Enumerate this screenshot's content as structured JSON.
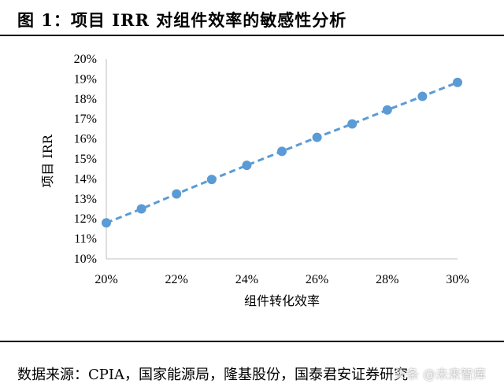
{
  "figure": {
    "title": "图 1：项目 IRR 对组件效率的敏感性分析",
    "source": "数据来源：CPIA，国家能源局，隆基股份，国泰君安证券研究",
    "watermark": "头条 @未来智库"
  },
  "chart_data": {
    "type": "line",
    "title": "",
    "xlabel": "组件转化效率",
    "ylabel": "项目 IRR",
    "xlim": [
      0.2,
      0.3
    ],
    "ylim": [
      0.1,
      0.2
    ],
    "x_ticks": [
      "20%",
      "22%",
      "24%",
      "26%",
      "28%",
      "30%"
    ],
    "y_ticks": [
      "10%",
      "11%",
      "12%",
      "13%",
      "14%",
      "15%",
      "16%",
      "17%",
      "18%",
      "19%",
      "20%"
    ],
    "grid": false,
    "line_style": "dashed",
    "marker": "circle",
    "color": "#5b9bd5",
    "series": [
      {
        "x": [
          0.2,
          0.21,
          0.22,
          0.23,
          0.24,
          0.25,
          0.26,
          0.27,
          0.28,
          0.29,
          0.3
        ],
        "values": [
          0.118,
          0.125,
          0.1325,
          0.1397,
          0.1468,
          0.1538,
          0.1608,
          0.1675,
          0.1745,
          0.1813,
          0.1883
        ]
      }
    ]
  }
}
